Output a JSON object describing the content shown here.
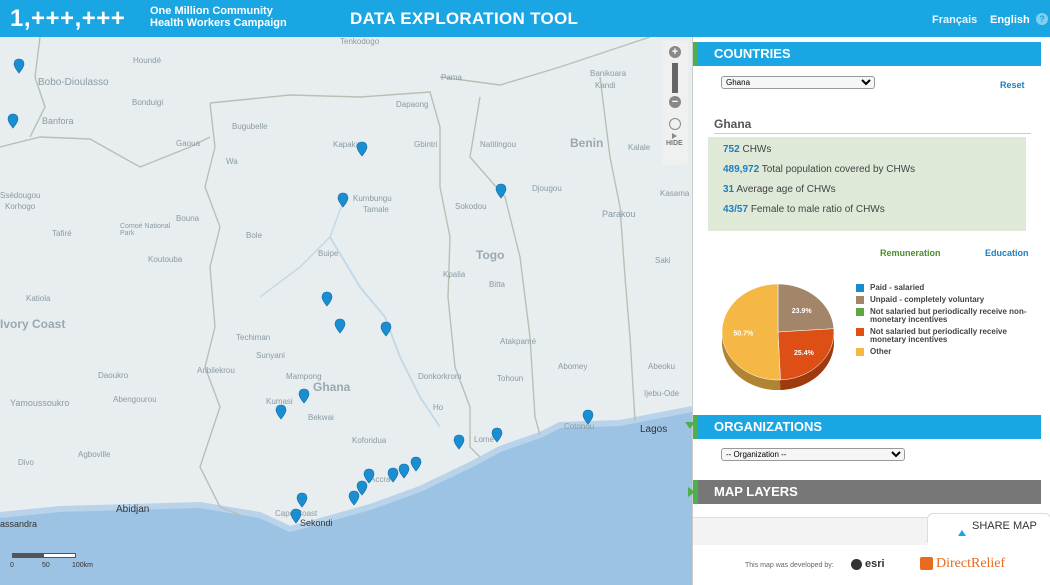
{
  "header": {
    "logo": "1,+++,+++",
    "campaign_line1": "One Million Community",
    "campaign_line2": "Health Workers Campaign",
    "title": "DATA EXPLORATION TOOL",
    "lang_fr": "Français",
    "lang_en": "English",
    "help": "?"
  },
  "map": {
    "labels": {
      "tenkodogo": "Tenkodogo",
      "bobo": "Bobo-Dioulasso",
      "hounde": "Houndé",
      "banfora": "Banfora",
      "bonduigi": "Bonduigi",
      "gaoua": "Gaoua",
      "bugubelle": "Bugubelle",
      "wa": "Wa",
      "pama": "Pama",
      "banikoara": "Banikoara",
      "kandi": "Kandi",
      "dapaong": "Dapaong",
      "kapaka": "Kapaka",
      "gbintri": "Gbintri",
      "natitingou": "Natitingou",
      "benin": "Benin",
      "kalale": "Kalale",
      "kumbungu": "Kumbungu",
      "tamale": "Tamale",
      "sokodou": "Sokodou",
      "djougou": "Djougou",
      "kasama": "Kasama",
      "parakou": "Parakou",
      "sessedougou": "Ssédougou",
      "korhogo": "Korhogo",
      "bouna": "Bouna",
      "comoe": "Comoé National Park",
      "tafire": "Tafiré",
      "bole": "Bole",
      "koutouba": "Koutouba",
      "buipe": "Buipe",
      "togo": "Togo",
      "kpalia": "Kpalia",
      "bitta": "Bitta",
      "saki": "Saki",
      "katiola": "Katiola",
      "ivory": "Ivory Coast",
      "techiman": "Techiman",
      "sunyani": "Sunyani",
      "atakpame": "Atakpamé",
      "abomey": "Abomey",
      "abeokuta": "Abeoku",
      "aribilekrou": "Aribilekrou",
      "mampong": "Mampong",
      "ghana": "Ghana",
      "donkorkrom": "Donkorkrom",
      "tohoun": "Tohoun",
      "ijebu": "Ijebu-Ode",
      "daoukro": "Daoukro",
      "abengourou": "Abengourou",
      "yamoussoukro": "Yamoussoukro",
      "kumasi": "Kumasi",
      "bekwai": "Bekwai",
      "ho": "Ho",
      "cotonou": "Cotonou",
      "koforidua": "Koforidua",
      "lome": "Lomé",
      "lagos": "Lagos",
      "divo": "Divo",
      "agboville": "Agboville",
      "accra": "Accra",
      "abidjan": "Abidjan",
      "sassandra": "assandra",
      "capecoast": "Cape Coast",
      "sekondi": "Sekondi"
    },
    "zoom_in": "+",
    "zoom_out": "−",
    "hide": "HIDE",
    "scale": {
      "zero": "0",
      "mid": "50",
      "end": "100km"
    }
  },
  "panel": {
    "countries": {
      "heading": "COUNTRIES",
      "selected": "Ghana",
      "reset": "Reset",
      "country_name": "Ghana",
      "stats": [
        {
          "value": "752",
          "label": "CHWs"
        },
        {
          "value": "489,972",
          "label": "Total population covered by CHWs"
        },
        {
          "value": "31",
          "label": "Average age of CHWs"
        },
        {
          "value": "43/57",
          "label": "Female to male ratio of CHWs"
        }
      ],
      "tab_remuneration": "Remuneration",
      "tab_education": "Education"
    },
    "organizations": {
      "heading": "ORGANIZATIONS",
      "selected": "-- Organization --"
    },
    "map_layers": {
      "heading": "MAP LAYERS"
    },
    "share": "SHARE MAP",
    "developed_by": "This map was developed by:",
    "esri": "esri",
    "direct_relief": "DirectRelief"
  },
  "chart_data": {
    "type": "pie",
    "title": "",
    "slices": [
      {
        "name": "Paid - salaried",
        "value": 0,
        "color": "#1a8bd0"
      },
      {
        "name": "Unpaid - completely voluntary",
        "value": 23.9,
        "color": "#a3866a"
      },
      {
        "name": "Not salaried but periodically receive non-monetary incentives",
        "value": 0,
        "color": "#5da640"
      },
      {
        "name": "Not salaried but periodically receive monetary incentives",
        "value": 25.4,
        "color": "#dd4f14"
      },
      {
        "name": "Other",
        "value": 50.7,
        "color": "#f5b845"
      }
    ],
    "data_labels": [
      "23.9%",
      "25.4%",
      "50.7%"
    ],
    "legend": "right"
  }
}
